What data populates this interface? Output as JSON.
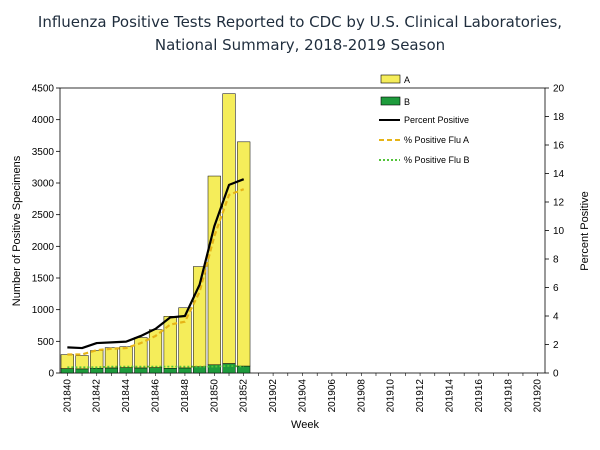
{
  "chart_data": {
    "type": "bar",
    "title_lines": [
      "Influenza Positive Tests Reported to CDC by U.S. Clinical Laboratories,",
      "National Summary, 2018-2019 Season"
    ],
    "xlabel": "Week",
    "ylabel": "Number of Positive Specimens",
    "y2label": "Percent Positive",
    "ylim": [
      0,
      4500
    ],
    "y2lim": [
      0,
      20
    ],
    "yticks": [
      0,
      500,
      1000,
      1500,
      2000,
      2500,
      3000,
      3500,
      4000,
      4500
    ],
    "y2ticks": [
      0,
      2,
      4,
      6,
      8,
      10,
      12,
      14,
      16,
      18,
      20
    ],
    "categories": [
      "201840",
      "201841",
      "201842",
      "201843",
      "201844",
      "201845",
      "201846",
      "201847",
      "201848",
      "201849",
      "201850",
      "201851",
      "201852",
      "201901",
      "201902",
      "201903",
      "201904",
      "201905",
      "201906",
      "201907",
      "201908",
      "201909",
      "201910",
      "201911",
      "201912",
      "201913",
      "201914",
      "201915",
      "201916",
      "201917",
      "201918",
      "201919",
      "201920"
    ],
    "tick_labels": [
      "201840",
      "201842",
      "201844",
      "201846",
      "201848",
      "201850",
      "201852",
      "201902",
      "201904",
      "201906",
      "201908",
      "201910",
      "201912",
      "201914",
      "201916",
      "201918",
      "201920"
    ],
    "series_bars": [
      {
        "name": "A",
        "color": "#f5ed5a",
        "values": [
          220,
          210,
          280,
          320,
          330,
          480,
          600,
          820,
          950,
          1580,
          2980,
          4260,
          3540
        ]
      },
      {
        "name": "B",
        "color": "#1e9b3c",
        "values": [
          70,
          65,
          75,
          80,
          85,
          80,
          85,
          75,
          80,
          100,
          130,
          150,
          110
        ]
      }
    ],
    "series_lines": [
      {
        "name": "Percent Positive",
        "color": "#000000",
        "style": "solid",
        "values": [
          1.8,
          1.75,
          2.1,
          2.15,
          2.2,
          2.6,
          3.1,
          3.9,
          4.0,
          6.2,
          10.3,
          13.2,
          13.6
        ]
      },
      {
        "name": "% Positive Flu A",
        "color": "#e6b417",
        "style": "dashed",
        "values": [
          1.3,
          1.3,
          1.6,
          1.7,
          1.75,
          2.1,
          2.6,
          3.4,
          3.6,
          5.7,
          9.6,
          12.5,
          12.9
        ]
      },
      {
        "name": "% Positive Flu B",
        "color": "#54c43a",
        "style": "dotted",
        "values": [
          0.4,
          0.4,
          0.4,
          0.45,
          0.45,
          0.45,
          0.45,
          0.45,
          0.45,
          0.45,
          0.45,
          0.5,
          0.45
        ]
      }
    ],
    "legend": [
      "A",
      "B",
      "Percent Positive",
      "% Positive Flu A",
      "% Positive Flu B"
    ]
  }
}
